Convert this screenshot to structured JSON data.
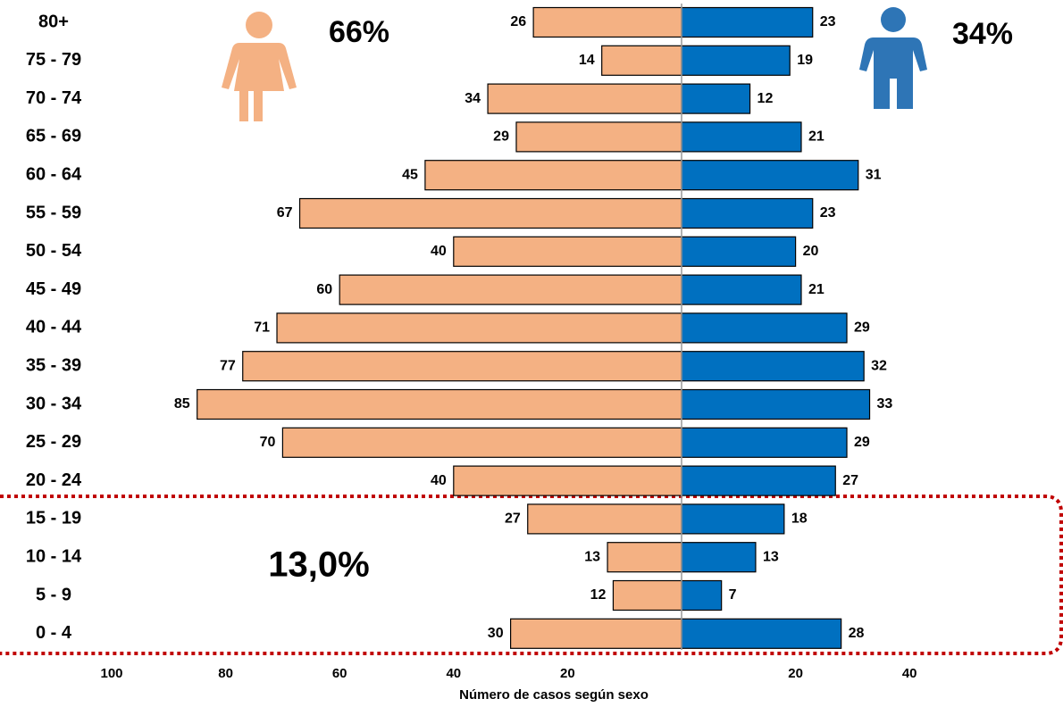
{
  "chart_data": {
    "type": "pyramid",
    "categories": [
      "80+",
      "75 - 79",
      "70 - 74",
      "65 - 69",
      "60 - 64",
      "55 - 59",
      "50 - 54",
      "45 - 49",
      "40 - 44",
      "35 - 39",
      "30 - 34",
      "25 - 29",
      "20 - 24",
      "15 - 19",
      "10 - 14",
      "5 - 9",
      "0 - 4"
    ],
    "series": [
      {
        "color": "#F4B183",
        "side": "left",
        "values": [
          26,
          14,
          34,
          29,
          45,
          67,
          40,
          60,
          71,
          77,
          85,
          70,
          40,
          27,
          13,
          12,
          30
        ]
      },
      {
        "color": "#0070C0",
        "side": "right",
        "values": [
          23,
          19,
          12,
          21,
          31,
          23,
          20,
          21,
          29,
          32,
          33,
          29,
          27,
          18,
          13,
          7,
          28
        ]
      }
    ],
    "left_xlim": [
      0,
      100
    ],
    "left_xticks": [
      100,
      80,
      60,
      40,
      20
    ],
    "right_xlim": [
      0,
      60
    ],
    "right_xticks": [
      20,
      40
    ],
    "xlabel": "Número de casos según sexo",
    "annotations": [
      "66%",
      "34%",
      "13,0%"
    ]
  }
}
